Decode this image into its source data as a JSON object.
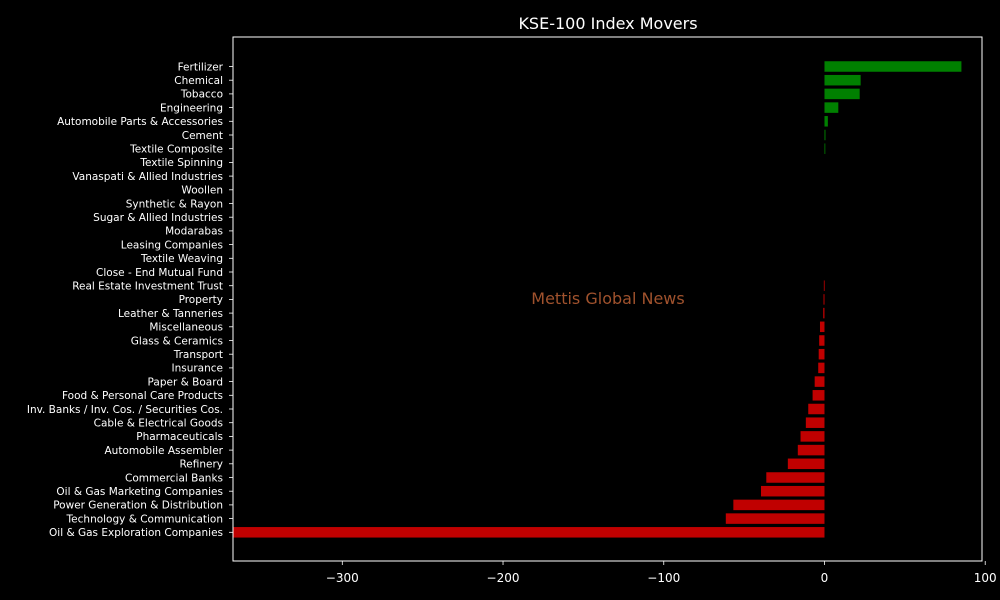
{
  "chart_data": {
    "type": "bar",
    "orientation": "horizontal",
    "title": "KSE-100 Index Movers",
    "watermark": "Mettis Global News",
    "xlabel": "",
    "ylabel": "",
    "xlim": [
      -368,
      98
    ],
    "xticks": [
      -300,
      -200,
      -100,
      0,
      100
    ],
    "xtick_labels": [
      "−300",
      "−200",
      "−100",
      "0",
      "100"
    ],
    "colors": {
      "positive": "#008000",
      "negative": "#c00000",
      "background": "#000000",
      "text": "#ffffff",
      "watermark": "#a0522d"
    },
    "grid": false,
    "categories": [
      "Fertilizer",
      "Chemical",
      "Tobacco",
      "Engineering",
      "Automobile Parts & Accessories",
      "Cement",
      "Textile Composite",
      "Textile Spinning",
      "Vanaspati & Allied Industries",
      "Woollen",
      "Synthetic & Rayon",
      "Sugar & Allied Industries",
      "Modarabas",
      "Leasing Companies",
      "Textile Weaving",
      "Close - End Mutual Fund",
      "Real Estate Investment Trust",
      "Property",
      "Leather & Tanneries",
      "Miscellaneous",
      "Glass & Ceramics",
      "Transport",
      "Insurance",
      "Paper & Board",
      "Food & Personal Care Products",
      "Inv. Banks / Inv. Cos. / Securities Cos.",
      "Cable & Electrical Goods",
      "Pharmaceuticals",
      "Automobile Assembler",
      "Refinery",
      "Commercial Banks",
      "Oil & Gas Marketing Companies",
      "Power Generation & Distribution",
      "Technology & Communication",
      "Oil & Gas Exploration Companies"
    ],
    "values": [
      85.2,
      22.5,
      21.9,
      8.6,
      2.1,
      0.6,
      0.4,
      0,
      0,
      0,
      0,
      0,
      0,
      0,
      0,
      0,
      -0.4,
      -0.6,
      -0.8,
      -2.8,
      -3.3,
      -3.6,
      -3.9,
      -6.1,
      -7.4,
      -10.1,
      -11.6,
      -14.9,
      -16.6,
      -22.8,
      -36.2,
      -39.5,
      -56.7,
      -61.4,
      -368.0
    ]
  }
}
